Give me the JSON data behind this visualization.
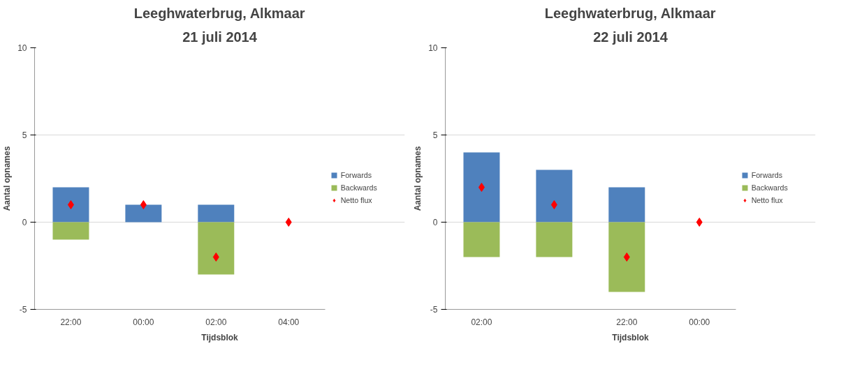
{
  "chart_data": [
    {
      "type": "bar",
      "title": "Leeghwaterbrug, Alkmaar",
      "subtitle": "21 juli 2014",
      "xlabel": "Tijdsblok",
      "ylabel": "Aantal opnames",
      "categories": [
        "22:00",
        "00:00",
        "02:00",
        "04:00"
      ],
      "stacked": true,
      "ylim": [
        -5,
        10
      ],
      "yticks": [
        -5,
        0,
        5,
        10
      ],
      "grid": "y",
      "legend": "right",
      "marker": "diamond",
      "series": [
        {
          "name": "Forwards",
          "type": "bar",
          "color": "#4f81bd",
          "values": [
            2,
            1,
            1,
            0
          ]
        },
        {
          "name": "Backwards",
          "type": "bar",
          "color": "#9bbb59",
          "values": [
            -1,
            0,
            -3,
            0
          ]
        },
        {
          "name": "Netto flux",
          "type": "scatter",
          "color": "#ff0000",
          "values": [
            1,
            1,
            -2,
            0
          ]
        }
      ]
    },
    {
      "type": "bar",
      "title": "Leeghwaterbrug, Alkmaar",
      "subtitle": "22 juli 2014",
      "xlabel": "Tijdsblok",
      "ylabel": "Aantal opnames",
      "categories": [
        "02:00",
        null,
        "22:00",
        "00:00"
      ],
      "stacked": true,
      "ylim": [
        -5,
        10
      ],
      "yticks": [
        -5,
        0,
        5,
        10
      ],
      "grid": "y",
      "legend": "right",
      "marker": "diamond",
      "series": [
        {
          "name": "Forwards",
          "type": "bar",
          "color": "#4f81bd",
          "values": [
            4,
            3,
            2,
            0
          ]
        },
        {
          "name": "Backwards",
          "type": "bar",
          "color": "#9bbb59",
          "values": [
            -2,
            -2,
            -4,
            0
          ]
        },
        {
          "name": "Netto flux",
          "type": "scatter",
          "color": "#ff0000",
          "values": [
            2,
            1,
            -2,
            0
          ]
        }
      ]
    }
  ]
}
